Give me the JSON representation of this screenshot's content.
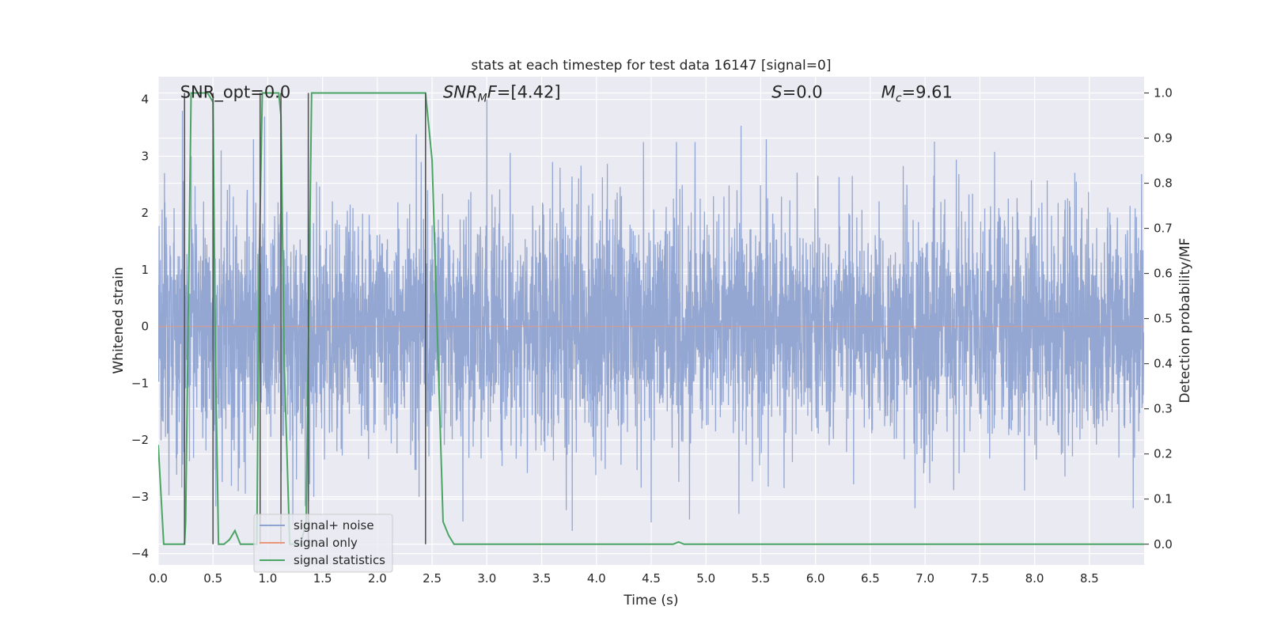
{
  "chart_data": {
    "type": "line",
    "title": "stats at each timestep for test data 16147 [signal=0]",
    "xlabel": "Time (s)",
    "ylabel": "Whitened strain",
    "ylabel_right": "Detection probability/MF",
    "xlim": [
      0.0,
      9.0
    ],
    "ylim": [
      -4.2,
      4.4
    ],
    "ylim_right": [
      -0.046,
      1.036
    ],
    "x_ticks": [
      "0.0",
      "0.5",
      "1.0",
      "1.5",
      "2.0",
      "2.5",
      "3.0",
      "3.5",
      "4.0",
      "4.5",
      "5.0",
      "5.5",
      "6.0",
      "6.5",
      "7.0",
      "7.5",
      "8.0",
      "8.5"
    ],
    "x_tick_values": [
      0.0,
      0.5,
      1.0,
      1.5,
      2.0,
      2.5,
      3.0,
      3.5,
      4.0,
      4.5,
      5.0,
      5.5,
      6.0,
      6.5,
      7.0,
      7.5,
      8.0,
      8.5
    ],
    "y_ticks": [
      "4",
      "3",
      "2",
      "1",
      "0",
      "−1",
      "−2",
      "−3",
      "−4"
    ],
    "y_tick_values": [
      4,
      3,
      2,
      1,
      0,
      -1,
      -2,
      -3,
      -4
    ],
    "y_ticks_right": [
      "1.0",
      "0.9",
      "0.8",
      "0.7",
      "0.6",
      "0.5",
      "0.4",
      "0.3",
      "0.2",
      "0.1",
      "0.0"
    ],
    "y_tick_values_right": [
      1.0,
      0.9,
      0.8,
      0.7,
      0.6,
      0.5,
      0.4,
      0.3,
      0.2,
      0.1,
      0.0
    ],
    "grid": true,
    "annotations": [
      {
        "id": "snr-opt",
        "parts": [
          {
            "t": "SNR_opt=0.0",
            "style": "normal"
          }
        ],
        "x": 0.2
      },
      {
        "id": "snr-mf",
        "parts": [
          {
            "t": "SNR",
            "style": "italic"
          },
          {
            "t": "M",
            "style": "italic-sub"
          },
          {
            "t": "F",
            "style": "italic"
          },
          {
            "t": "=[4.42]",
            "style": "normal"
          }
        ],
        "x": 2.6
      },
      {
        "id": "s-value",
        "parts": [
          {
            "t": "S",
            "style": "italic"
          },
          {
            "t": "=0.0",
            "style": "normal"
          }
        ],
        "x": 5.6
      },
      {
        "id": "mc-value",
        "parts": [
          {
            "t": "M",
            "style": "italic"
          },
          {
            "t": "c",
            "style": "italic-sub"
          },
          {
            "t": "=9.61",
            "style": "normal"
          }
        ],
        "x": 6.6
      }
    ],
    "legend": {
      "position": "lower-left",
      "entries": [
        {
          "label": "signal+ noise",
          "color": "#8fa3d0"
        },
        {
          "label": "signal only",
          "color": "#e9967a"
        },
        {
          "label": "signal statistics",
          "color": "#4aa564"
        }
      ]
    },
    "series": [
      {
        "name": "signal+ noise",
        "axis": "left",
        "color": "#8fa3d0",
        "kind": "noise",
        "duration": 9.0,
        "sample_rate": 512,
        "sigma": 1.0,
        "max_abs": 4.0,
        "seed": 16147,
        "peaks": [
          [
            0.22,
            3.8
          ],
          [
            0.3,
            3.0
          ],
          [
            0.5,
            2.6
          ],
          [
            0.65,
            2.5
          ],
          [
            0.87,
            3.3
          ],
          [
            0.97,
            3.7
          ],
          [
            1.12,
            3.4
          ],
          [
            1.37,
            3.3
          ],
          [
            2.4,
            2.9
          ],
          [
            3.0,
            4.0
          ],
          [
            3.6,
            2.9
          ],
          [
            4.43,
            3.25
          ],
          [
            4.73,
            3.25
          ],
          [
            4.9,
            3.25
          ],
          [
            5.55,
            3.3
          ],
          [
            4.5,
            -3.45
          ],
          [
            4.85,
            -3.4
          ],
          [
            5.3,
            -3.3
          ],
          [
            8.9,
            -3.2
          ],
          [
            2.38,
            -3.0
          ],
          [
            1.42,
            -3.0
          ],
          [
            0.73,
            -2.9
          ]
        ]
      },
      {
        "name": "signal only",
        "axis": "left",
        "color": "#e9967a",
        "kind": "flat",
        "value": 0.0
      },
      {
        "name": "signal statistics",
        "axis": "right",
        "color": "#4aa564",
        "kind": "line",
        "x": [
          0.0,
          0.05,
          0.1,
          0.15,
          0.2,
          0.24,
          0.25,
          0.3,
          0.35,
          0.4,
          0.45,
          0.5,
          0.52,
          0.55,
          0.6,
          0.65,
          0.7,
          0.75,
          0.8,
          0.85,
          0.9,
          0.92,
          0.95,
          1.0,
          1.05,
          1.1,
          1.12,
          1.15,
          1.2,
          1.25,
          1.3,
          1.35,
          1.4,
          1.45,
          1.5,
          1.6,
          1.8,
          2.0,
          2.2,
          2.4,
          2.44,
          2.5,
          2.55,
          2.6,
          2.65,
          2.7,
          2.75,
          2.8,
          3.0,
          4.0,
          4.5,
          4.7,
          4.75,
          4.8,
          5.0,
          6.0,
          7.0,
          8.0,
          9.0
        ],
        "y": [
          0.22,
          0.0,
          0.0,
          0.0,
          0.0,
          0.0,
          0.05,
          1.0,
          1.0,
          1.0,
          1.0,
          0.98,
          0.45,
          0.0,
          0.0,
          0.01,
          0.03,
          0.0,
          0.0,
          0.0,
          0.0,
          0.6,
          1.0,
          1.0,
          1.0,
          1.0,
          0.95,
          0.4,
          0.0,
          0.0,
          0.0,
          0.05,
          1.0,
          1.0,
          1.0,
          1.0,
          1.0,
          1.0,
          1.0,
          1.0,
          1.0,
          0.85,
          0.45,
          0.05,
          0.02,
          0.0,
          0.0,
          0.0,
          0.0,
          0.0,
          0.0,
          0.0,
          0.005,
          0.0,
          0.0,
          0.0,
          0.0,
          0.0,
          0.0
        ]
      },
      {
        "name": "threshold markers",
        "axis": "right",
        "color": "#555555",
        "kind": "vlines",
        "x": [
          0.24,
          0.5,
          0.93,
          1.12,
          1.37,
          2.44
        ],
        "ymin": 0.0,
        "ymax": 1.0
      }
    ]
  }
}
